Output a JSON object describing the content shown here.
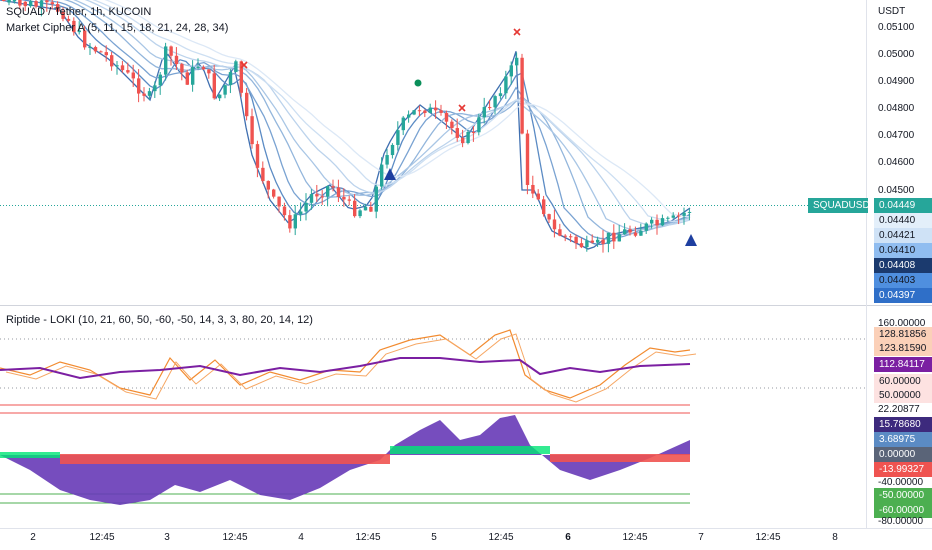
{
  "header": {
    "symbol_line": "SQUAD / Tether, 1h, KUCOIN",
    "indicator_line": "Market Cipher A (5, 11, 15, 18, 21, 24, 28, 34)",
    "sub_indicator": "Riptide - LOKI (10, 21, 60, 50, -60, -50, 14, 3, 3, 80, 20, 14, 12)"
  },
  "price_axis": {
    "currency": "USDT",
    "ticks": [
      "0.05100",
      "0.05000",
      "0.04900",
      "0.04800",
      "0.04700",
      "0.04600",
      "0.04500"
    ]
  },
  "price_tags": {
    "symbol_tag": "SQUADUSDT",
    "last": "0.04449",
    "levels": [
      "0.04440",
      "0.04421",
      "0.04410",
      "0.04408",
      "0.04403",
      "0.04397"
    ]
  },
  "osc_axis": {
    "top": "160.00000",
    "bottom": "-80.00000",
    "tags": [
      "128.81856",
      "123.81590",
      "112.84117",
      "60.00000",
      "50.00000",
      "22.20877",
      "15.78680",
      "3.68975",
      "0.00000",
      "-13.99327",
      "-40.00000",
      "-50.00000",
      "-60.00000"
    ]
  },
  "time_axis": {
    "ticks": [
      "2",
      "12:45",
      "3",
      "12:45",
      "4",
      "12:45",
      "5",
      "12:45",
      "6",
      "12:45",
      "7",
      "12:45",
      "8"
    ]
  },
  "colors": {
    "up": "#26a69a",
    "down": "#ef5350",
    "ribbon": "#5b8bc4",
    "wave1": "#f28b30",
    "wave2": "#7b1fa2",
    "money_flow": "#673ab7",
    "green_tag": "#4caf50"
  }
}
